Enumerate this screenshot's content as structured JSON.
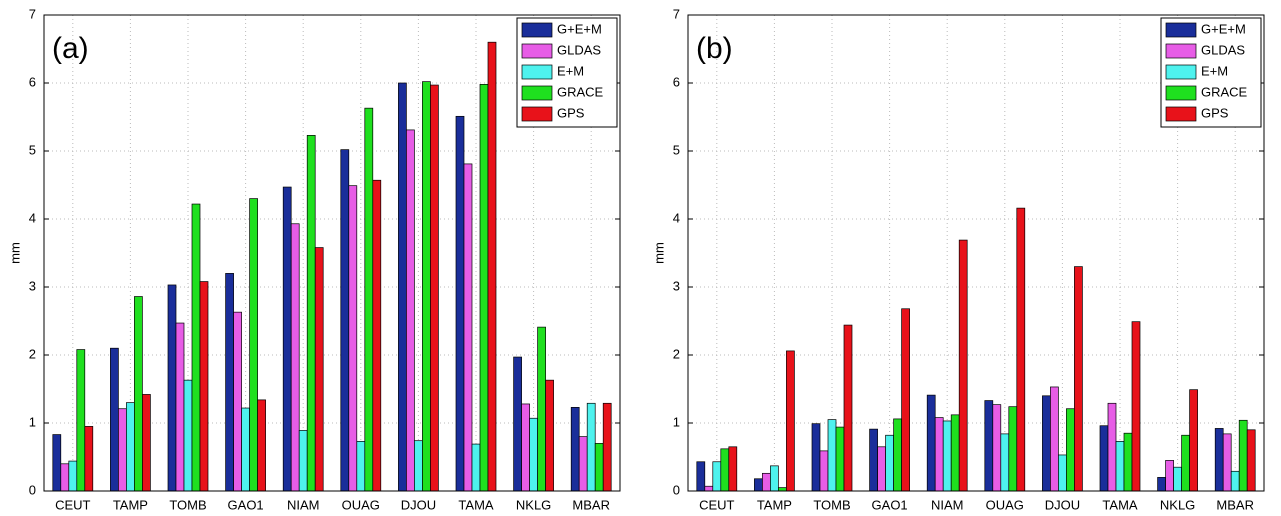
{
  "chart_data": [
    {
      "type": "bar",
      "label": "(a)",
      "ylabel": "mm",
      "categories": [
        "CEUT",
        "TAMP",
        "TOMB",
        "GAO1",
        "NIAM",
        "OUAG",
        "DJOU",
        "TAMA",
        "NKLG",
        "MBAR"
      ],
      "series": [
        {
          "name": "G+E+M",
          "color": "#1a2e9a",
          "values": [
            0.83,
            2.1,
            3.03,
            3.2,
            4.47,
            5.02,
            6.0,
            5.51,
            1.97,
            1.23
          ]
        },
        {
          "name": "GLDAS",
          "color": "#e75de6",
          "values": [
            0.4,
            1.21,
            2.47,
            2.63,
            3.93,
            4.49,
            5.31,
            4.81,
            1.28,
            0.8
          ]
        },
        {
          "name": "E+M",
          "color": "#4ef2ee",
          "values": [
            0.44,
            1.3,
            1.63,
            1.22,
            0.89,
            0.73,
            0.74,
            0.69,
            1.07,
            1.29
          ]
        },
        {
          "name": "GRACE",
          "color": "#1fe01f",
          "values": [
            2.08,
            2.86,
            4.22,
            4.3,
            5.23,
            5.63,
            6.02,
            5.98,
            2.41,
            0.7
          ]
        },
        {
          "name": "GPS",
          "color": "#e8121a",
          "values": [
            0.95,
            1.42,
            3.08,
            1.34,
            3.58,
            4.57,
            5.97,
            6.6,
            1.63,
            1.29
          ]
        }
      ],
      "ylim": [
        0,
        7
      ],
      "yticks": [
        0,
        1,
        2,
        3,
        4,
        5,
        6,
        7
      ],
      "grid": true,
      "legend": "upper right"
    },
    {
      "type": "bar",
      "label": "(b)",
      "ylabel": "mm",
      "categories": [
        "CEUT",
        "TAMP",
        "TOMB",
        "GAO1",
        "NIAM",
        "OUAG",
        "DJOU",
        "TAMA",
        "NKLG",
        "MBAR"
      ],
      "series": [
        {
          "name": "G+E+M",
          "color": "#1a2e9a",
          "values": [
            0.43,
            0.18,
            0.99,
            0.91,
            1.41,
            1.33,
            1.4,
            0.96,
            0.2,
            0.92
          ]
        },
        {
          "name": "GLDAS",
          "color": "#e75de6",
          "values": [
            0.07,
            0.26,
            0.59,
            0.65,
            1.08,
            1.27,
            1.53,
            1.29,
            0.45,
            0.84
          ]
        },
        {
          "name": "E+M",
          "color": "#4ef2ee",
          "values": [
            0.43,
            0.37,
            1.05,
            0.82,
            1.03,
            0.84,
            0.53,
            0.73,
            0.35,
            0.29
          ]
        },
        {
          "name": "GRACE",
          "color": "#1fe01f",
          "values": [
            0.62,
            0.05,
            0.94,
            1.06,
            1.12,
            1.24,
            1.21,
            0.85,
            0.82,
            1.04
          ]
        },
        {
          "name": "GPS",
          "color": "#e8121a",
          "values": [
            0.65,
            2.06,
            2.44,
            2.68,
            3.69,
            4.16,
            3.3,
            2.49,
            1.49,
            0.9
          ]
        }
      ],
      "ylim": [
        0,
        7
      ],
      "yticks": [
        0,
        1,
        2,
        3,
        4,
        5,
        6,
        7
      ],
      "grid": true,
      "legend": "upper right"
    }
  ]
}
